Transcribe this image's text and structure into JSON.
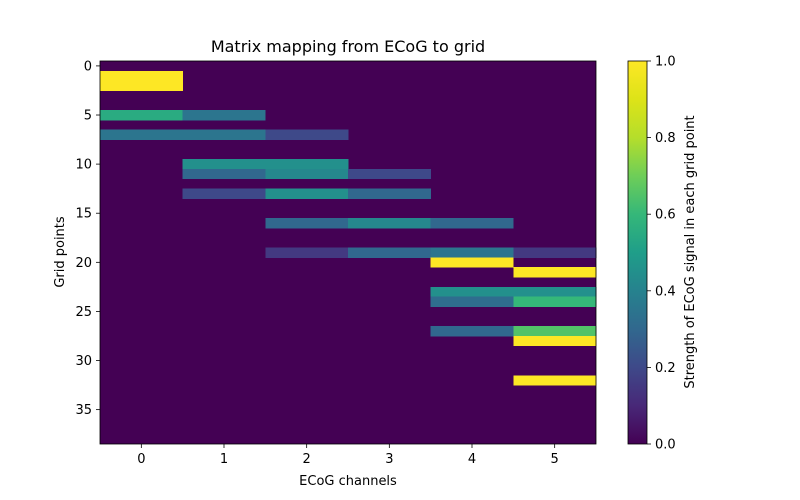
{
  "chart_data": {
    "type": "heatmap",
    "title": "Matrix mapping from ECoG to grid",
    "xlabel": "ECoG channels",
    "ylabel": "Grid points",
    "colorbar_label": "Strength of ECoG signal in each grid point",
    "colormap": "viridis",
    "n_cols": 6,
    "n_rows": 39,
    "xticks": [
      0,
      1,
      2,
      3,
      4,
      5
    ],
    "yticks": [
      0,
      5,
      10,
      15,
      20,
      25,
      30,
      35
    ],
    "colorbar_range": [
      0.0,
      1.0
    ],
    "colorbar_ticks": [
      "0.0",
      "0.2",
      "0.4",
      "0.6",
      "0.8",
      "1.0"
    ],
    "default_value": 0.0,
    "cells": [
      {
        "row": 1,
        "col": 0,
        "value": 1.0
      },
      {
        "row": 2,
        "col": 0,
        "value": 1.0
      },
      {
        "row": 5,
        "col": 0,
        "value": 0.55
      },
      {
        "row": 5,
        "col": 1,
        "value": 0.35
      },
      {
        "row": 7,
        "col": 0,
        "value": 0.35
      },
      {
        "row": 7,
        "col": 1,
        "value": 0.35
      },
      {
        "row": 7,
        "col": 2,
        "value": 0.2
      },
      {
        "row": 10,
        "col": 1,
        "value": 0.45
      },
      {
        "row": 10,
        "col": 2,
        "value": 0.45
      },
      {
        "row": 11,
        "col": 1,
        "value": 0.3
      },
      {
        "row": 11,
        "col": 2,
        "value": 0.42
      },
      {
        "row": 11,
        "col": 3,
        "value": 0.2
      },
      {
        "row": 13,
        "col": 1,
        "value": 0.2
      },
      {
        "row": 13,
        "col": 2,
        "value": 0.45
      },
      {
        "row": 13,
        "col": 3,
        "value": 0.3
      },
      {
        "row": 16,
        "col": 2,
        "value": 0.3
      },
      {
        "row": 16,
        "col": 3,
        "value": 0.42
      },
      {
        "row": 16,
        "col": 4,
        "value": 0.3
      },
      {
        "row": 19,
        "col": 2,
        "value": 0.15
      },
      {
        "row": 19,
        "col": 3,
        "value": 0.3
      },
      {
        "row": 19,
        "col": 4,
        "value": 0.35
      },
      {
        "row": 19,
        "col": 5,
        "value": 0.15
      },
      {
        "row": 20,
        "col": 4,
        "value": 1.0
      },
      {
        "row": 21,
        "col": 5,
        "value": 1.0
      },
      {
        "row": 23,
        "col": 4,
        "value": 0.45
      },
      {
        "row": 23,
        "col": 5,
        "value": 0.45
      },
      {
        "row": 24,
        "col": 4,
        "value": 0.32
      },
      {
        "row": 24,
        "col": 5,
        "value": 0.6
      },
      {
        "row": 27,
        "col": 4,
        "value": 0.3
      },
      {
        "row": 27,
        "col": 5,
        "value": 0.65
      },
      {
        "row": 28,
        "col": 5,
        "value": 1.0
      },
      {
        "row": 32,
        "col": 5,
        "value": 1.0
      }
    ]
  }
}
